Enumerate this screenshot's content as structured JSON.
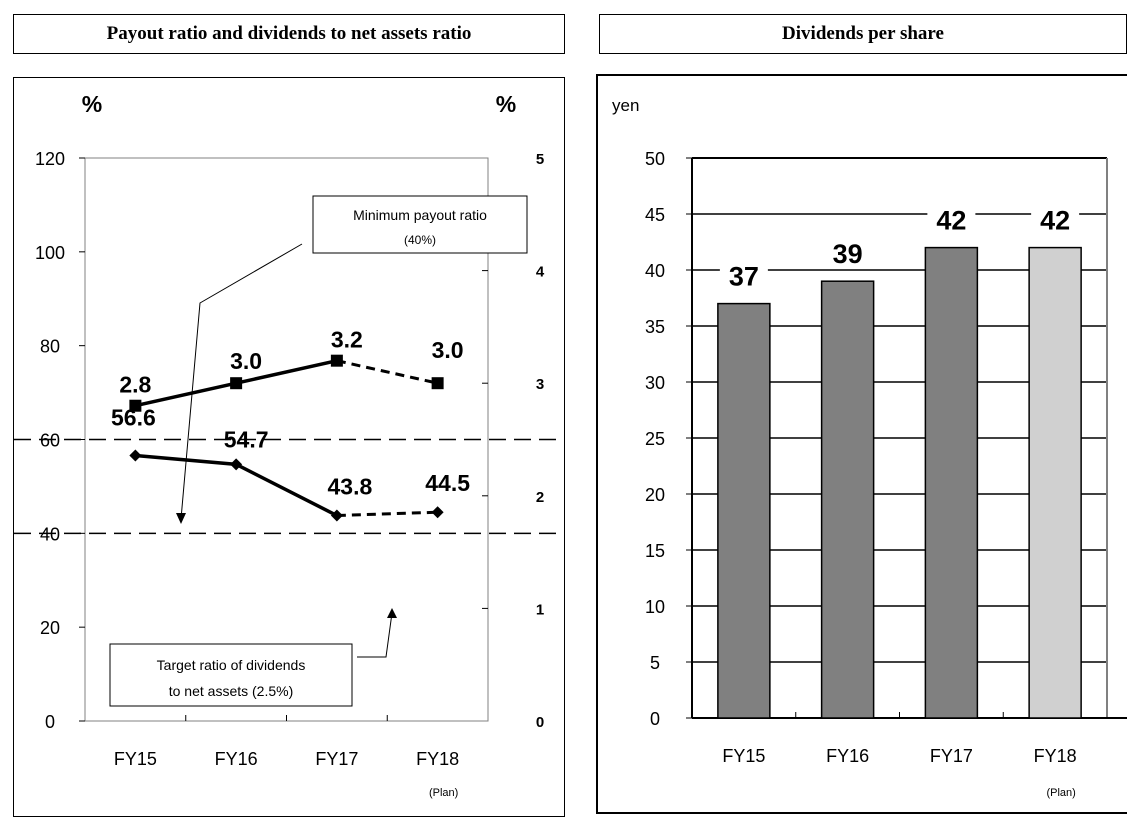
{
  "left_panel": {
    "title": "Payout ratio and dividends to net assets ratio"
  },
  "right_panel": {
    "title": "Dividends per share"
  },
  "chart_data": [
    {
      "type": "line",
      "title": "Payout ratio and dividends to net assets ratio",
      "categories": [
        "FY15",
        "FY16",
        "FY17",
        "FY18"
      ],
      "category_note": {
        "FY18": "(Plan)"
      },
      "y_left": {
        "unit": "%",
        "lim": [
          0,
          120
        ],
        "ticks": [
          0,
          20,
          40,
          60,
          80,
          100,
          120
        ]
      },
      "y_right": {
        "unit": "%",
        "lim": [
          0,
          5
        ],
        "ticks": [
          0,
          1,
          2,
          3,
          4,
          5
        ]
      },
      "series": [
        {
          "axis": "left",
          "marker": "diamond",
          "values": [
            56.6,
            54.7,
            43.8,
            44.5
          ],
          "labels": [
            "56.6",
            "54.7",
            "43.8",
            "44.5"
          ],
          "plan_dashed_last": true
        },
        {
          "axis": "right",
          "marker": "square",
          "values": [
            2.8,
            3.0,
            3.2,
            3.0
          ],
          "labels": [
            "2.8",
            "3.0",
            "3.2",
            "3.0"
          ],
          "plan_dashed_last": true
        }
      ],
      "reference_lines": [
        {
          "axis": "left",
          "value": 40,
          "style": "dashed",
          "label": "Minimum payout ratio\n(40%)"
        },
        {
          "axis": "right",
          "value": 2.5,
          "style": "dashed",
          "label": "Target ratio of dividends\nto net assets (2.5%)"
        }
      ],
      "grid": false
    },
    {
      "type": "bar",
      "title": "Dividends per share",
      "categories": [
        "FY15",
        "FY16",
        "FY17",
        "FY18"
      ],
      "category_note": {
        "FY18": "(Plan)"
      },
      "values": [
        37,
        39,
        42,
        42
      ],
      "labels": [
        "37",
        "39",
        "42",
        "42"
      ],
      "bar_colors": [
        "#808080",
        "#808080",
        "#808080",
        "#d0d0d0"
      ],
      "ylabel": "yen",
      "ylim": [
        0,
        50
      ],
      "yticks": [
        0,
        5,
        10,
        15,
        20,
        25,
        30,
        35,
        40,
        45,
        50
      ],
      "grid": true
    }
  ]
}
